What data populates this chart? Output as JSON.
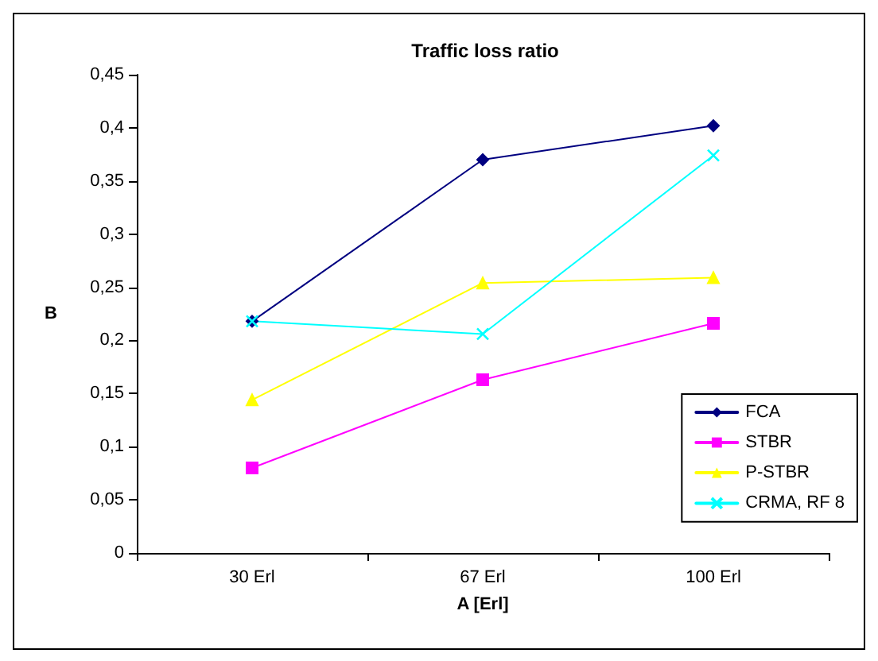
{
  "chart_data": {
    "type": "line",
    "title": "Traffic loss ratio",
    "xlabel": "A [Erl]",
    "ylabel": "B",
    "categories": [
      "30 Erl",
      "67 Erl",
      "100 Erl"
    ],
    "series": [
      {
        "name": "FCA",
        "color": "#000080",
        "marker": "diamond",
        "values": [
          0.218,
          0.37,
          0.402
        ]
      },
      {
        "name": "STBR",
        "color": "#ff00ff",
        "marker": "square",
        "values": [
          0.08,
          0.163,
          0.216
        ]
      },
      {
        "name": "P-STBR",
        "color": "#ffff00",
        "marker": "triangle",
        "values": [
          0.144,
          0.254,
          0.259
        ]
      },
      {
        "name": "CRMA, RF 8",
        "color": "#00ffff",
        "marker": "cross",
        "values": [
          0.218,
          0.206,
          0.374
        ]
      }
    ],
    "ylim": [
      0,
      0.45
    ],
    "yticks": [
      0,
      {
        "value": 0.05,
        "label": "0,05"
      },
      {
        "value": 0.1,
        "label": "0,1"
      },
      {
        "value": 0.15,
        "label": "0,15"
      },
      {
        "value": 0.2,
        "label": "0,2"
      },
      {
        "value": 0.25,
        "label": "0,25"
      },
      {
        "value": 0.3,
        "label": "0,3"
      },
      {
        "value": 0.35,
        "label": "0,35"
      },
      {
        "value": 0.4,
        "label": "0,4"
      },
      {
        "value": 0.45,
        "label": "0,45"
      }
    ],
    "grid": false,
    "legend": "bottom right",
    "line_style": "solid"
  }
}
